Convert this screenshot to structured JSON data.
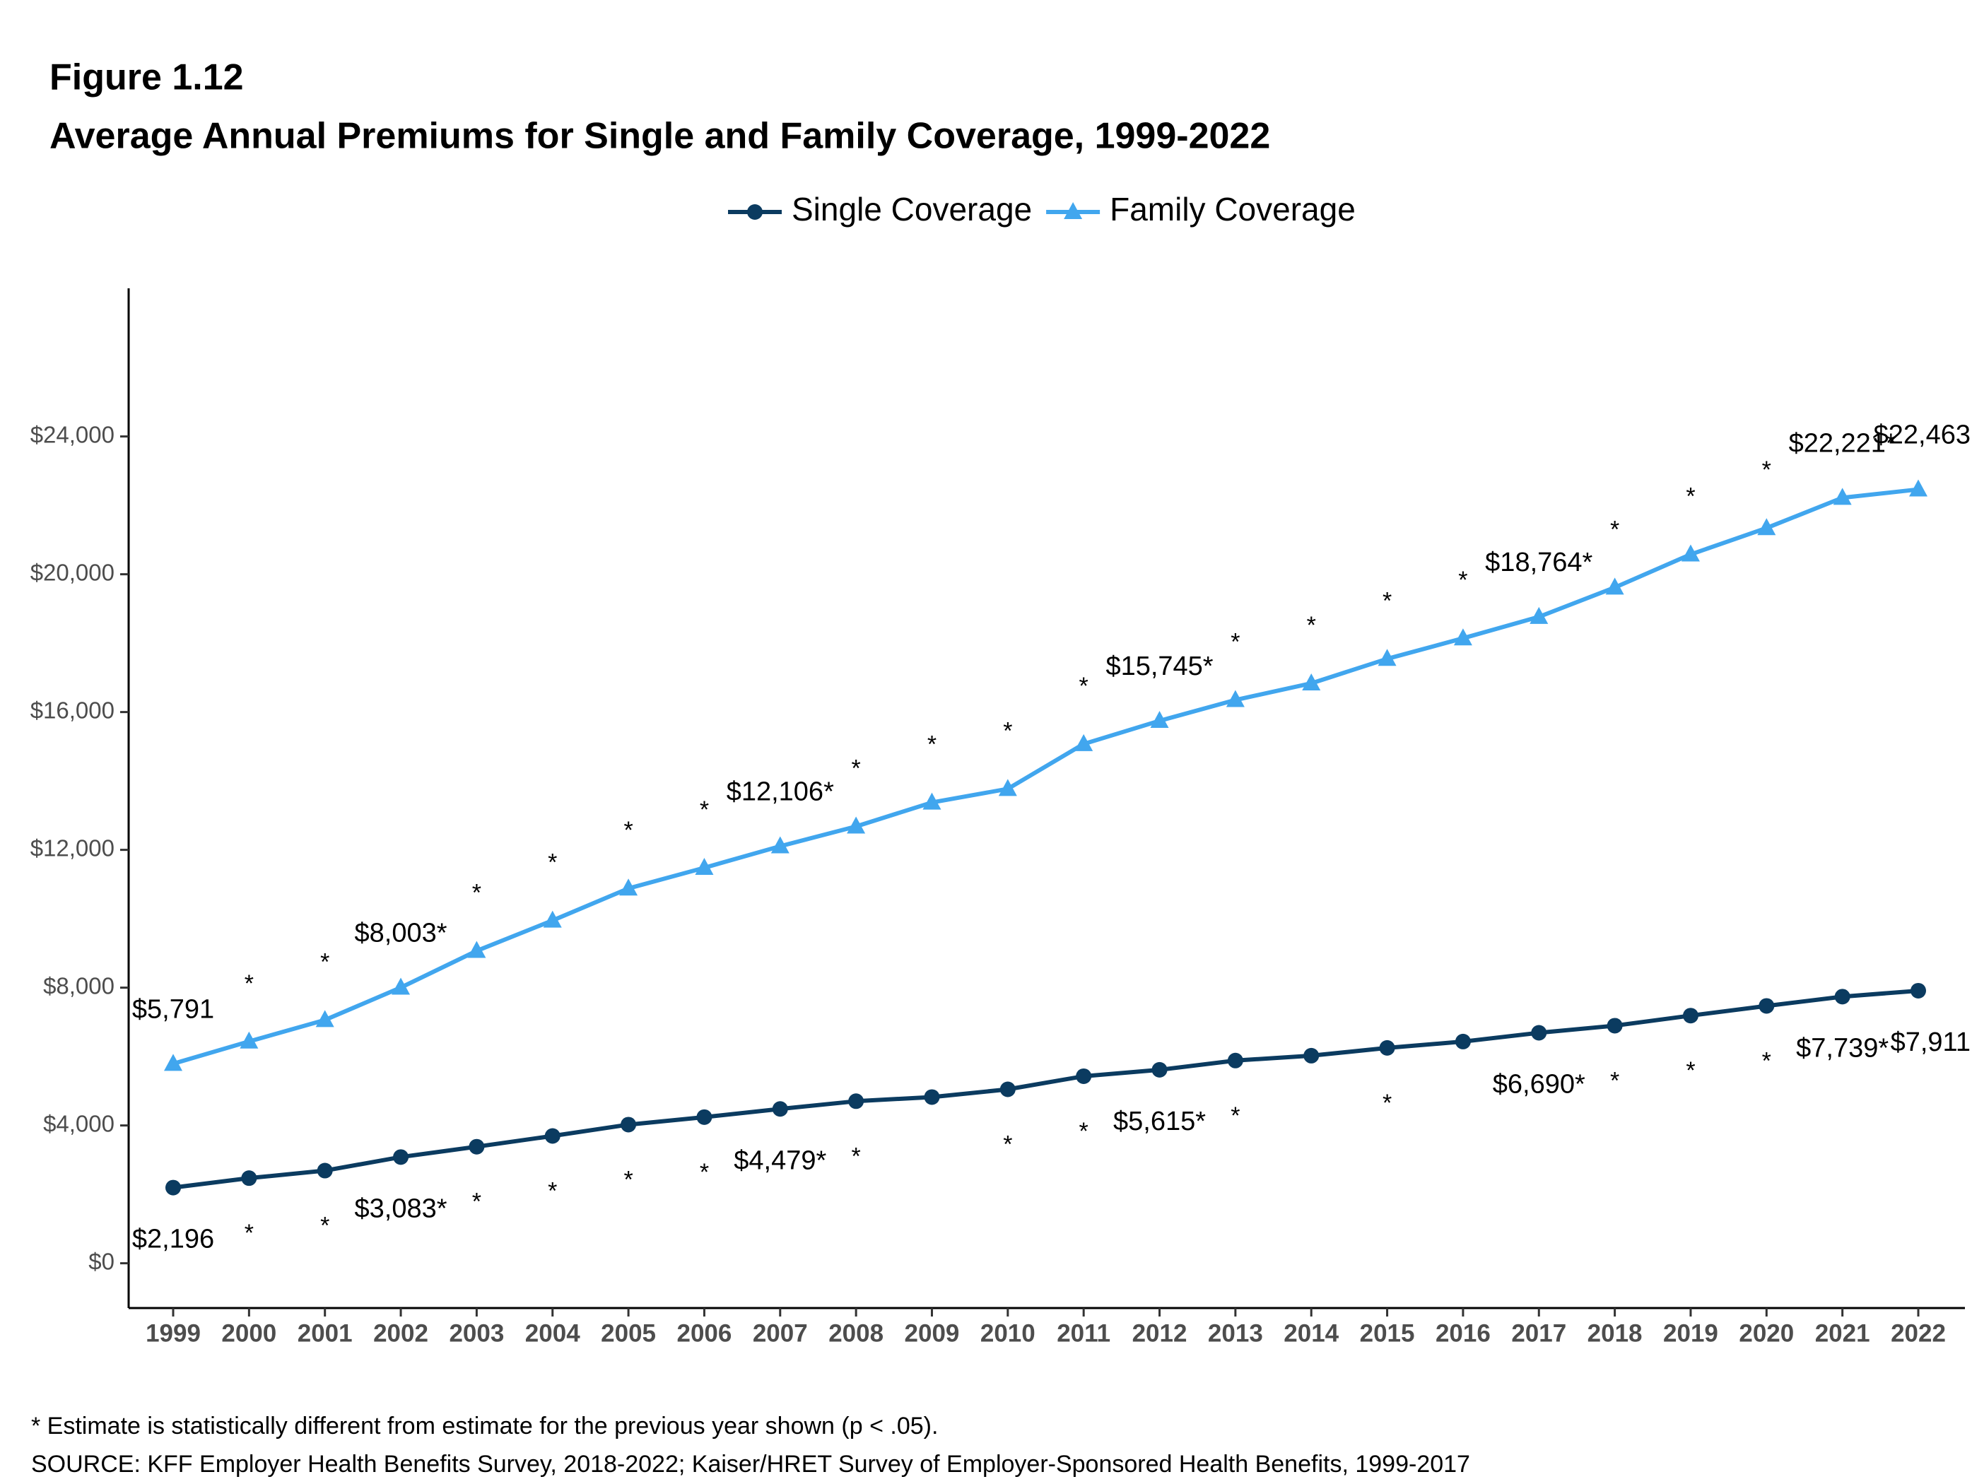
{
  "chart_data": {
    "type": "line",
    "figure_label": "Figure 1.12",
    "title": "Average Annual Premiums for Single and Family Coverage, 1999-2022",
    "categories": [
      "1999",
      "2000",
      "2001",
      "2002",
      "2003",
      "2004",
      "2005",
      "2006",
      "2007",
      "2008",
      "2009",
      "2010",
      "2011",
      "2012",
      "2013",
      "2014",
      "2015",
      "2016",
      "2017",
      "2018",
      "2019",
      "2020",
      "2021",
      "2022"
    ],
    "series": [
      {
        "name": "Single Coverage",
        "color": "#0b3b60",
        "marker": "circle",
        "values": [
          2196,
          2471,
          2689,
          3083,
          3383,
          3695,
          4024,
          4242,
          4479,
          4704,
          4824,
          5049,
          5429,
          5615,
          5884,
          6025,
          6251,
          6435,
          6690,
          6896,
          7188,
          7470,
          7739,
          7911
        ],
        "value_labels": [
          "$2,196",
          "*",
          "*",
          "$3,083*",
          "*",
          "*",
          "*",
          "*",
          "$4,479*",
          "*",
          null,
          "*",
          "*",
          "$5,615*",
          "*",
          null,
          "*",
          null,
          "$6,690*",
          "*",
          "*",
          "*",
          "$7,739*",
          "$7,911"
        ]
      },
      {
        "name": "Family Coverage",
        "color": "#41a6ee",
        "marker": "triangle",
        "values": [
          5791,
          6438,
          7061,
          8003,
          9068,
          9950,
          10880,
          11480,
          12106,
          12680,
          13375,
          13770,
          15073,
          15745,
          16351,
          16834,
          17545,
          18142,
          18764,
          19616,
          20576,
          21342,
          22221,
          22463
        ],
        "value_labels": [
          "$5,791",
          "*",
          "*",
          "$8,003*",
          "*",
          "*",
          "*",
          "*",
          "$12,106*",
          "*",
          "*",
          "*",
          "*",
          "$15,745*",
          "*",
          "*",
          "*",
          "*",
          "$18,764*",
          "*",
          "*",
          "*",
          "$22,221*",
          "$22,463"
        ]
      }
    ],
    "ylim": [
      -1300,
      28300
    ],
    "yticks": [
      {
        "value": 0,
        "label": "$0"
      },
      {
        "value": 4000,
        "label": "$4,000"
      },
      {
        "value": 8000,
        "label": "$8,000"
      },
      {
        "value": 12000,
        "label": "$12,000"
      },
      {
        "value": 16000,
        "label": "$16,000"
      },
      {
        "value": 20000,
        "label": "$20,000"
      },
      {
        "value": 24000,
        "label": "$24,000"
      }
    ],
    "grid": false,
    "legend": "top",
    "footnotes": [
      "* Estimate is statistically different from estimate for the previous year shown (p < .05).",
      "SOURCE: KFF Employer Health Benefits Survey, 2018-2022; Kaiser/HRET Survey of Employer-Sponsored Health Benefits, 1999-2017"
    ]
  }
}
